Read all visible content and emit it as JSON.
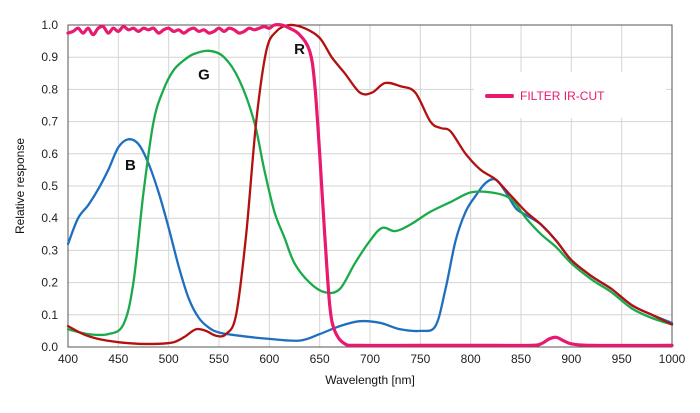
{
  "chart_data": {
    "type": "line",
    "xlabel": "Wavelength [nm]",
    "ylabel": "Relative response",
    "xlim": [
      400,
      1000
    ],
    "ylim": [
      0,
      1.0
    ],
    "xticks": [
      400,
      450,
      500,
      550,
      600,
      650,
      700,
      750,
      800,
      850,
      900,
      950,
      1000
    ],
    "xtick_labels": [
      "400",
      "450",
      "500",
      "550",
      "600",
      "650",
      "700",
      "750",
      "800",
      "850",
      "900",
      "950",
      "1000"
    ],
    "yticks": [
      0,
      0.1,
      0.2,
      0.3,
      0.4,
      0.5,
      0.6,
      0.7,
      0.8,
      0.9,
      1.0
    ],
    "ytick_labels": [
      "0.0",
      "0.1",
      "0.2",
      "0.3",
      "0.4",
      "0.5",
      "0.6",
      "0.7",
      "0.8",
      "0.9",
      "1.0"
    ],
    "grid": true,
    "legend": {
      "placement": "right",
      "entries": [
        {
          "label": "FILTER IR-CUT",
          "color": "#e8196e"
        }
      ]
    },
    "curve_labels": [
      {
        "text": "B",
        "x": 462,
        "y": 0.55
      },
      {
        "text": "G",
        "x": 535,
        "y": 0.83
      },
      {
        "text": "R",
        "x": 630,
        "y": 0.91
      }
    ],
    "series": [
      {
        "key": "blue",
        "color": "#1f6fc0",
        "points": [
          [
            400,
            0.32
          ],
          [
            410,
            0.4
          ],
          [
            420,
            0.44
          ],
          [
            430,
            0.49
          ],
          [
            440,
            0.55
          ],
          [
            450,
            0.62
          ],
          [
            460,
            0.645
          ],
          [
            470,
            0.63
          ],
          [
            480,
            0.57
          ],
          [
            490,
            0.48
          ],
          [
            500,
            0.37
          ],
          [
            510,
            0.25
          ],
          [
            520,
            0.15
          ],
          [
            530,
            0.09
          ],
          [
            540,
            0.06
          ],
          [
            550,
            0.045
          ],
          [
            570,
            0.035
          ],
          [
            600,
            0.025
          ],
          [
            630,
            0.02
          ],
          [
            650,
            0.04
          ],
          [
            670,
            0.065
          ],
          [
            690,
            0.08
          ],
          [
            710,
            0.075
          ],
          [
            730,
            0.055
          ],
          [
            750,
            0.05
          ],
          [
            765,
            0.065
          ],
          [
            775,
            0.18
          ],
          [
            785,
            0.33
          ],
          [
            795,
            0.42
          ],
          [
            805,
            0.47
          ],
          [
            815,
            0.51
          ],
          [
            825,
            0.52
          ],
          [
            835,
            0.48
          ],
          [
            845,
            0.43
          ],
          [
            855,
            0.41
          ],
          [
            870,
            0.38
          ],
          [
            885,
            0.33
          ],
          [
            900,
            0.27
          ],
          [
            920,
            0.22
          ],
          [
            940,
            0.18
          ],
          [
            960,
            0.13
          ],
          [
            980,
            0.1
          ],
          [
            1000,
            0.075
          ]
        ]
      },
      {
        "key": "green",
        "color": "#1aaa4a",
        "points": [
          [
            400,
            0.055
          ],
          [
            420,
            0.04
          ],
          [
            440,
            0.04
          ],
          [
            455,
            0.07
          ],
          [
            465,
            0.2
          ],
          [
            475,
            0.48
          ],
          [
            485,
            0.7
          ],
          [
            495,
            0.8
          ],
          [
            505,
            0.86
          ],
          [
            515,
            0.89
          ],
          [
            525,
            0.91
          ],
          [
            540,
            0.92
          ],
          [
            555,
            0.9
          ],
          [
            570,
            0.83
          ],
          [
            585,
            0.7
          ],
          [
            595,
            0.55
          ],
          [
            605,
            0.42
          ],
          [
            615,
            0.34
          ],
          [
            625,
            0.26
          ],
          [
            640,
            0.2
          ],
          [
            655,
            0.17
          ],
          [
            670,
            0.18
          ],
          [
            685,
            0.26
          ],
          [
            700,
            0.33
          ],
          [
            712,
            0.37
          ],
          [
            725,
            0.36
          ],
          [
            740,
            0.38
          ],
          [
            760,
            0.42
          ],
          [
            780,
            0.45
          ],
          [
            800,
            0.48
          ],
          [
            820,
            0.48
          ],
          [
            840,
            0.46
          ],
          [
            855,
            0.4
          ],
          [
            870,
            0.35
          ],
          [
            885,
            0.31
          ],
          [
            900,
            0.26
          ],
          [
            920,
            0.21
          ],
          [
            940,
            0.17
          ],
          [
            960,
            0.12
          ],
          [
            980,
            0.09
          ],
          [
            1000,
            0.07
          ]
        ]
      },
      {
        "key": "red",
        "color": "#b31010",
        "points": [
          [
            400,
            0.065
          ],
          [
            415,
            0.04
          ],
          [
            430,
            0.025
          ],
          [
            450,
            0.015
          ],
          [
            470,
            0.01
          ],
          [
            490,
            0.01
          ],
          [
            505,
            0.015
          ],
          [
            515,
            0.03
          ],
          [
            527,
            0.055
          ],
          [
            537,
            0.05
          ],
          [
            547,
            0.035
          ],
          [
            557,
            0.04
          ],
          [
            567,
            0.1
          ],
          [
            577,
            0.35
          ],
          [
            587,
            0.7
          ],
          [
            597,
            0.92
          ],
          [
            607,
            0.98
          ],
          [
            620,
            1.0
          ],
          [
            635,
            0.99
          ],
          [
            650,
            0.96
          ],
          [
            662,
            0.9
          ],
          [
            675,
            0.85
          ],
          [
            690,
            0.79
          ],
          [
            702,
            0.79
          ],
          [
            715,
            0.82
          ],
          [
            730,
            0.81
          ],
          [
            745,
            0.79
          ],
          [
            760,
            0.7
          ],
          [
            770,
            0.68
          ],
          [
            780,
            0.67
          ],
          [
            795,
            0.6
          ],
          [
            810,
            0.55
          ],
          [
            825,
            0.52
          ],
          [
            840,
            0.47
          ],
          [
            855,
            0.42
          ],
          [
            870,
            0.38
          ],
          [
            885,
            0.33
          ],
          [
            900,
            0.27
          ],
          [
            920,
            0.22
          ],
          [
            940,
            0.18
          ],
          [
            960,
            0.13
          ],
          [
            980,
            0.1
          ],
          [
            1000,
            0.07
          ]
        ]
      },
      {
        "key": "ircut",
        "color": "#e8196e",
        "name": "FILTER IR-CUT",
        "points": [
          [
            400,
            0.975
          ],
          [
            405,
            0.98
          ],
          [
            410,
            0.99
          ],
          [
            415,
            0.975
          ],
          [
            420,
            0.99
          ],
          [
            425,
            0.97
          ],
          [
            430,
            0.99
          ],
          [
            435,
            0.995
          ],
          [
            440,
            0.975
          ],
          [
            445,
            0.99
          ],
          [
            450,
            0.98
          ],
          [
            455,
            0.995
          ],
          [
            460,
            0.985
          ],
          [
            465,
            0.99
          ],
          [
            470,
            0.98
          ],
          [
            475,
            0.99
          ],
          [
            480,
            0.985
          ],
          [
            485,
            0.99
          ],
          [
            490,
            0.975
          ],
          [
            495,
            0.985
          ],
          [
            500,
            0.99
          ],
          [
            505,
            0.98
          ],
          [
            510,
            0.985
          ],
          [
            515,
            0.975
          ],
          [
            520,
            0.985
          ],
          [
            525,
            0.99
          ],
          [
            530,
            0.98
          ],
          [
            535,
            0.985
          ],
          [
            540,
            0.975
          ],
          [
            545,
            0.98
          ],
          [
            550,
            0.99
          ],
          [
            555,
            0.98
          ],
          [
            560,
            0.99
          ],
          [
            565,
            0.985
          ],
          [
            570,
            0.975
          ],
          [
            575,
            0.98
          ],
          [
            580,
            0.99
          ],
          [
            585,
            0.985
          ],
          [
            590,
            0.99
          ],
          [
            595,
            0.995
          ],
          [
            600,
            0.99
          ],
          [
            605,
            1.0
          ],
          [
            612,
            1.0
          ],
          [
            620,
            0.99
          ],
          [
            630,
            0.97
          ],
          [
            640,
            0.92
          ],
          [
            645,
            0.82
          ],
          [
            650,
            0.6
          ],
          [
            655,
            0.35
          ],
          [
            660,
            0.13
          ],
          [
            665,
            0.05
          ],
          [
            675,
            0.01
          ],
          [
            690,
            0.005
          ],
          [
            750,
            0.005
          ],
          [
            820,
            0.005
          ],
          [
            860,
            0.005
          ],
          [
            870,
            0.01
          ],
          [
            878,
            0.025
          ],
          [
            885,
            0.03
          ],
          [
            892,
            0.02
          ],
          [
            900,
            0.01
          ],
          [
            920,
            0.005
          ],
          [
            1000,
            0.005
          ]
        ]
      }
    ]
  }
}
